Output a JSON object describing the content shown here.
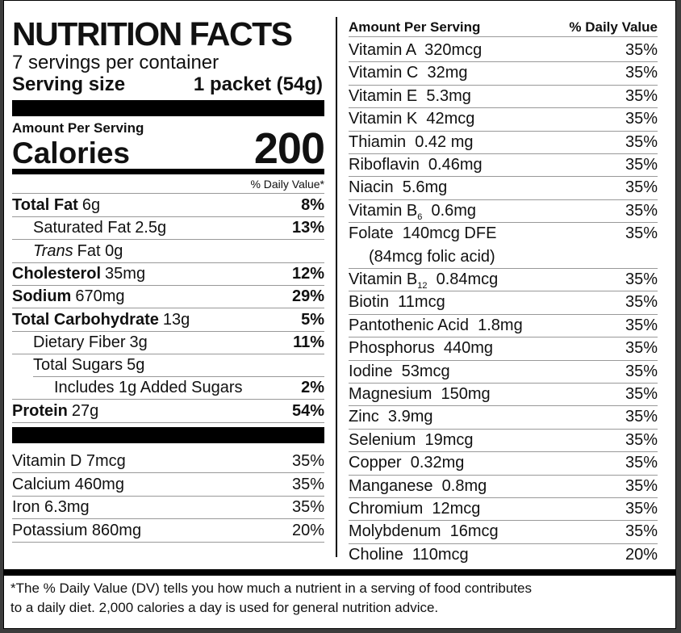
{
  "title": "NUTRITION FACTS",
  "servings_per_container": "7 servings per container",
  "serving_size_label": "Serving size",
  "serving_size_value": "1 packet (54g)",
  "amount_per_serving": "Amount Per Serving",
  "calories_label": "Calories",
  "calories_value": "200",
  "dv_header": "% Daily Value*",
  "nutrients": [
    {
      "name": "Total Fat",
      "amount": "6g",
      "dv": "8%"
    },
    {
      "name": "Saturated Fat",
      "amount": "2.5g",
      "dv": "13%"
    },
    {
      "name": "Trans",
      "amount": "Fat 0g",
      "dv": ""
    },
    {
      "name": "Cholesterol",
      "amount": "35mg",
      "dv": "12%"
    },
    {
      "name": "Sodium",
      "amount": "670mg",
      "dv": "29%"
    },
    {
      "name": "Total Carbohydrate",
      "amount": "13g",
      "dv": "5%"
    },
    {
      "name": "Dietary Fiber",
      "amount": "3g",
      "dv": "11%"
    },
    {
      "name": "Total Sugars",
      "amount": "5g",
      "dv": ""
    },
    {
      "name": "Includes 1g Added Sugars",
      "amount": "",
      "dv": "2%"
    },
    {
      "name": "Protein",
      "amount": "27g",
      "dv": "54%"
    }
  ],
  "minerals_left": [
    {
      "label": "Vitamin D 7mcg",
      "dv": "35%"
    },
    {
      "label": "Calcium 460mg",
      "dv": "35%"
    },
    {
      "label": "Iron 6.3mg",
      "dv": "35%"
    },
    {
      "label": "Potassium 860mg",
      "dv": "20%"
    }
  ],
  "right_header": {
    "amount": "Amount Per Serving",
    "dv": "% Daily Value"
  },
  "right_rows": [
    {
      "label": "Vitamin A  320mcg",
      "dv": "35%"
    },
    {
      "label": "Vitamin C  32mg",
      "dv": "35%"
    },
    {
      "label": "Vitamin E  5.3mg",
      "dv": "35%"
    },
    {
      "label": "Vitamin K  42mcg",
      "dv": "35%"
    },
    {
      "label": "Thiamin  0.42 mg",
      "dv": "35%"
    },
    {
      "label": "Riboflavin  0.46mg",
      "dv": "35%"
    },
    {
      "label": "Niacin  5.6mg",
      "dv": "35%"
    },
    {
      "label": "Vitamin B",
      "sub": "6",
      "rest": "  0.6mg",
      "dv": "35%"
    },
    {
      "label": "Folate  140mcg DFE",
      "line2": "(84mcg folic acid)",
      "dv": "35%"
    },
    {
      "label": "Vitamin B",
      "sub": "12",
      "rest": "  0.84mcg",
      "dv": "35%"
    },
    {
      "label": "Biotin  11mcg",
      "dv": "35%"
    },
    {
      "label": "Pantothenic Acid  1.8mg",
      "dv": "35%"
    },
    {
      "label": "Phosphorus  440mg",
      "dv": "35%"
    },
    {
      "label": "Iodine  53mcg",
      "dv": "35%"
    },
    {
      "label": "Magnesium  150mg",
      "dv": "35%"
    },
    {
      "label": "Zinc  3.9mg",
      "dv": "35%"
    },
    {
      "label": "Selenium  19mcg",
      "dv": "35%"
    },
    {
      "label": "Copper  0.32mg",
      "dv": "35%"
    },
    {
      "label": "Manganese  0.8mg",
      "dv": "35%"
    },
    {
      "label": "Chromium  12mcg",
      "dv": "35%"
    },
    {
      "label": "Molybdenum  16mcg",
      "dv": "35%"
    },
    {
      "label": "Choline  110mcg",
      "dv": "20%"
    }
  ],
  "footnote_1": "*The % Daily Value (DV) tells you how much a nutrient in a serving of food contributes",
  "footnote_2": "to a daily diet. 2,000 calories a day is used for general nutrition advice."
}
